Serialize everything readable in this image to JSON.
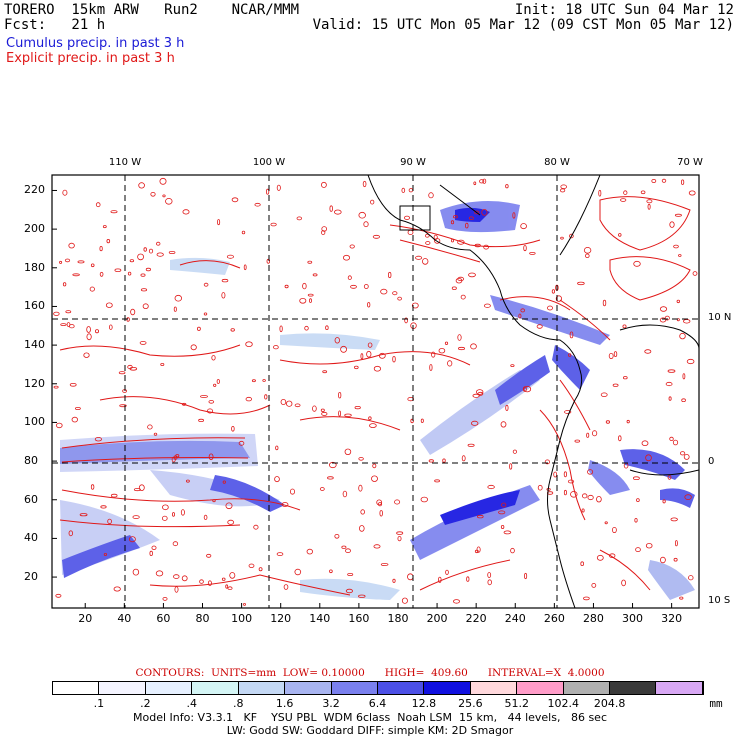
{
  "header": {
    "model": "TORERO  15km ARW   Run2    NCAR/MMM",
    "init": "Init: 18 UTC Sun 04 Mar 12",
    "fcst": "Fcst:   21 h",
    "valid": "Valid: 15 UTC Mon 05 Mar 12 (09 CST Mon 05 Mar 12)",
    "legend_cumulus": "Cumulus precip. in past 3 h",
    "legend_explicit": "Explicit precip. in past 3 h"
  },
  "map": {
    "lon_labels": [
      "110 W",
      "100 W",
      "90 W",
      "80 W",
      "70 W"
    ],
    "lat_labels": [
      "10 N",
      "0",
      "10 S"
    ],
    "y_ticks": [
      "220",
      "200",
      "180",
      "160",
      "140",
      "120",
      "100",
      "80",
      "60",
      "40",
      "20"
    ],
    "x_ticks": [
      "20",
      "40",
      "60",
      "80",
      "100",
      "120",
      "140",
      "160",
      "180",
      "200",
      "220",
      "240",
      "260",
      "280",
      "300",
      "320"
    ]
  },
  "colorbar": {
    "labels": [
      ".1",
      ".2",
      ".4",
      ".8",
      "1.6",
      "3.2",
      "6.4",
      "12.8",
      "25.6",
      "51.2",
      "102.4",
      "204.8"
    ],
    "unit": "mm",
    "colors": [
      "#ffffff",
      "#f4f4ff",
      "#e6f0ff",
      "#d4f5f5",
      "#c4d8f4",
      "#a8b4f0",
      "#7a80ee",
      "#4c50e6",
      "#1010e0",
      "#ffd8dc",
      "#ff9cc8",
      "#b0b0b0",
      "#3a3a3a",
      "#d8a8f4"
    ]
  },
  "contours": {
    "label": "CONTOURS:  UNITS=mm  LOW= 0.10000      HIGH=  409.60      INTERVAL=X  4.0000"
  },
  "footer": {
    "line1": "Model Info: V3.3.1   KF    YSU PBL  WDM 6class  Noah LSM  15 km,   44 levels,   86 sec",
    "line2": "LW: Godd SW: Goddard DIFF: simple KM: 2D Smagor"
  }
}
